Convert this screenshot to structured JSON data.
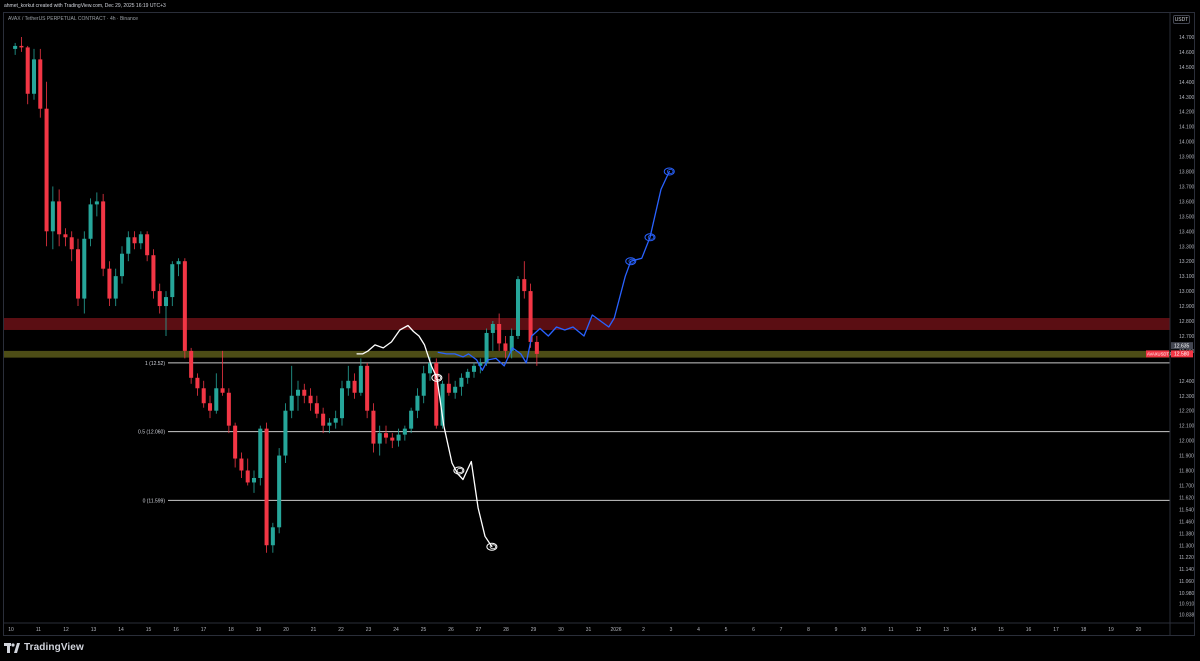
{
  "header": {
    "author_line": "ahmet_korkut created with TradingView.com, Dec 29, 2025 16:19 UTC+3",
    "symbol_line": "AVAX / TetherUS PERPETUAL CONTRACT · 4h · Binance"
  },
  "price_axis": {
    "currency": "USDT"
  },
  "footer": {
    "logo_text": "TradingView"
  },
  "colors": {
    "up": "#26a69a",
    "down": "#f23645",
    "red_zone": "#6b1016",
    "yellow_zone": "#5a5a1a",
    "bullish_path": "#2962ff",
    "bearish_path": "#ffffff",
    "fib_line": "#c9c9c9"
  },
  "chart_data": {
    "type": "candlestick",
    "title": "",
    "xlabel": "",
    "ylabel": "",
    "ylim": [
      10.8,
      14.8
    ],
    "y_ticks": [
      "14.700",
      "14.600",
      "14.500",
      "14.400",
      "14.300",
      "14.200",
      "14.100",
      "14.000",
      "13.900",
      "13.800",
      "13.700",
      "13.600",
      "13.500",
      "13.400",
      "13.300",
      "13.200",
      "13.100",
      "13.000",
      "12.900",
      "12.800",
      "12.700",
      "12.600",
      "12.400",
      "12.300",
      "12.200",
      "12.100",
      "12.000",
      "11.900",
      "11.800",
      "11.700",
      "11.620",
      "11.540",
      "11.460",
      "11.380",
      "11.300",
      "11.220",
      "11.140",
      "11.060",
      "10.980",
      "10.910",
      "10.838"
    ],
    "x_ticks": [
      "10",
      "11",
      "12",
      "13",
      "14",
      "15",
      "16",
      "17",
      "18",
      "19",
      "20",
      "21",
      "22",
      "23",
      "24",
      "25",
      "26",
      "27",
      "28",
      "29",
      "30",
      "31",
      "2026",
      "2",
      "3",
      "4",
      "5",
      "6",
      "7",
      "8",
      "9",
      "10",
      "11",
      "12",
      "13",
      "14",
      "15",
      "16",
      "17",
      "18",
      "19",
      "20"
    ],
    "price_labels": [
      {
        "label": "12.635",
        "value": 12.635,
        "color": "#434651"
      },
      {
        "label": "AVAXUSDT.P",
        "value": 12.58,
        "price": "12.580",
        "color": "#f23645"
      }
    ],
    "zones": [
      {
        "name": "resistance",
        "from": 12.74,
        "to": 12.82,
        "color": "#6b1016"
      },
      {
        "name": "support",
        "from": 12.555,
        "to": 12.6,
        "color": "#5a5a1a"
      }
    ],
    "fib_levels": [
      {
        "label": "1 (12.52)",
        "value": 12.52
      },
      {
        "label": "0.5 (12.060)",
        "value": 12.06
      },
      {
        "label": "0 (11.599)",
        "value": 11.6
      }
    ],
    "candles": [
      {
        "o": 14.62,
        "h": 14.66,
        "l": 14.58,
        "c": 14.64
      },
      {
        "o": 14.64,
        "h": 14.7,
        "l": 14.6,
        "c": 14.63
      },
      {
        "o": 14.63,
        "h": 14.64,
        "l": 14.25,
        "c": 14.32
      },
      {
        "o": 14.32,
        "h": 14.62,
        "l": 14.28,
        "c": 14.55
      },
      {
        "o": 14.55,
        "h": 14.62,
        "l": 14.16,
        "c": 14.22
      },
      {
        "o": 14.22,
        "h": 14.4,
        "l": 13.3,
        "c": 13.4
      },
      {
        "o": 13.4,
        "h": 13.7,
        "l": 13.28,
        "c": 13.6
      },
      {
        "o": 13.6,
        "h": 13.68,
        "l": 13.3,
        "c": 13.38
      },
      {
        "o": 13.38,
        "h": 13.42,
        "l": 13.3,
        "c": 13.36
      },
      {
        "o": 13.36,
        "h": 13.4,
        "l": 13.2,
        "c": 13.28
      },
      {
        "o": 13.28,
        "h": 13.35,
        "l": 12.9,
        "c": 12.95
      },
      {
        "o": 12.95,
        "h": 13.4,
        "l": 12.85,
        "c": 13.35
      },
      {
        "o": 13.35,
        "h": 13.62,
        "l": 13.3,
        "c": 13.58
      },
      {
        "o": 13.58,
        "h": 13.66,
        "l": 13.5,
        "c": 13.6
      },
      {
        "o": 13.6,
        "h": 13.65,
        "l": 13.1,
        "c": 13.15
      },
      {
        "o": 13.15,
        "h": 13.2,
        "l": 12.9,
        "c": 12.95
      },
      {
        "o": 12.95,
        "h": 13.15,
        "l": 12.9,
        "c": 13.1
      },
      {
        "o": 13.1,
        "h": 13.3,
        "l": 13.05,
        "c": 13.25
      },
      {
        "o": 13.25,
        "h": 13.4,
        "l": 13.2,
        "c": 13.36
      },
      {
        "o": 13.36,
        "h": 13.4,
        "l": 13.28,
        "c": 13.32
      },
      {
        "o": 13.32,
        "h": 13.4,
        "l": 13.28,
        "c": 13.38
      },
      {
        "o": 13.38,
        "h": 13.4,
        "l": 13.2,
        "c": 13.24
      },
      {
        "o": 13.24,
        "h": 13.28,
        "l": 12.95,
        "c": 13.0
      },
      {
        "o": 13.0,
        "h": 13.05,
        "l": 12.85,
        "c": 12.9
      },
      {
        "o": 12.9,
        "h": 13.0,
        "l": 12.7,
        "c": 12.96
      },
      {
        "o": 12.96,
        "h": 13.2,
        "l": 12.9,
        "c": 13.18
      },
      {
        "o": 13.18,
        "h": 13.22,
        "l": 13.1,
        "c": 13.2
      },
      {
        "o": 13.2,
        "h": 13.22,
        "l": 12.55,
        "c": 12.6
      },
      {
        "o": 12.6,
        "h": 12.62,
        "l": 12.38,
        "c": 12.42
      },
      {
        "o": 12.42,
        "h": 12.45,
        "l": 12.3,
        "c": 12.35
      },
      {
        "o": 12.35,
        "h": 12.4,
        "l": 12.22,
        "c": 12.25
      },
      {
        "o": 12.25,
        "h": 12.3,
        "l": 12.15,
        "c": 12.2
      },
      {
        "o": 12.2,
        "h": 12.45,
        "l": 12.18,
        "c": 12.35
      },
      {
        "o": 12.35,
        "h": 12.6,
        "l": 12.3,
        "c": 12.32
      },
      {
        "o": 12.32,
        "h": 12.35,
        "l": 12.05,
        "c": 12.1
      },
      {
        "o": 12.1,
        "h": 12.12,
        "l": 11.82,
        "c": 11.88
      },
      {
        "o": 11.88,
        "h": 11.92,
        "l": 11.75,
        "c": 11.8
      },
      {
        "o": 11.8,
        "h": 11.88,
        "l": 11.7,
        "c": 11.72
      },
      {
        "o": 11.72,
        "h": 11.8,
        "l": 11.65,
        "c": 11.75
      },
      {
        "o": 11.75,
        "h": 12.1,
        "l": 11.7,
        "c": 12.08
      },
      {
        "o": 12.08,
        "h": 12.12,
        "l": 11.25,
        "c": 11.3
      },
      {
        "o": 11.3,
        "h": 11.45,
        "l": 11.25,
        "c": 11.42
      },
      {
        "o": 11.42,
        "h": 11.95,
        "l": 11.38,
        "c": 11.9
      },
      {
        "o": 11.9,
        "h": 12.25,
        "l": 11.85,
        "c": 12.2
      },
      {
        "o": 12.2,
        "h": 12.5,
        "l": 12.15,
        "c": 12.3
      },
      {
        "o": 12.3,
        "h": 12.4,
        "l": 12.2,
        "c": 12.34
      },
      {
        "o": 12.34,
        "h": 12.38,
        "l": 12.25,
        "c": 12.3
      },
      {
        "o": 12.3,
        "h": 12.35,
        "l": 12.2,
        "c": 12.25
      },
      {
        "o": 12.25,
        "h": 12.3,
        "l": 12.15,
        "c": 12.18
      },
      {
        "o": 12.18,
        "h": 12.22,
        "l": 12.05,
        "c": 12.1
      },
      {
        "o": 12.1,
        "h": 12.15,
        "l": 12.05,
        "c": 12.12
      },
      {
        "o": 12.12,
        "h": 12.2,
        "l": 12.08,
        "c": 12.15
      },
      {
        "o": 12.15,
        "h": 12.4,
        "l": 12.1,
        "c": 12.35
      },
      {
        "o": 12.35,
        "h": 12.5,
        "l": 12.3,
        "c": 12.4
      },
      {
        "o": 12.4,
        "h": 12.45,
        "l": 12.28,
        "c": 12.32
      },
      {
        "o": 12.32,
        "h": 12.55,
        "l": 12.3,
        "c": 12.5
      },
      {
        "o": 12.5,
        "h": 12.52,
        "l": 12.15,
        "c": 12.2
      },
      {
        "o": 12.2,
        "h": 12.25,
        "l": 11.92,
        "c": 11.98
      },
      {
        "o": 11.98,
        "h": 12.1,
        "l": 11.9,
        "c": 12.05
      },
      {
        "o": 12.05,
        "h": 12.1,
        "l": 11.98,
        "c": 12.02
      },
      {
        "o": 12.02,
        "h": 12.05,
        "l": 11.95,
        "c": 12.0
      },
      {
        "o": 12.0,
        "h": 12.08,
        "l": 11.96,
        "c": 12.04
      },
      {
        "o": 12.04,
        "h": 12.1,
        "l": 12.0,
        "c": 12.08
      },
      {
        "o": 12.08,
        "h": 12.22,
        "l": 12.05,
        "c": 12.2
      },
      {
        "o": 12.2,
        "h": 12.35,
        "l": 12.15,
        "c": 12.3
      },
      {
        "o": 12.3,
        "h": 12.5,
        "l": 12.25,
        "c": 12.45
      },
      {
        "o": 12.45,
        "h": 12.56,
        "l": 12.4,
        "c": 12.52
      },
      {
        "o": 12.52,
        "h": 12.55,
        "l": 12.08,
        "c": 12.1
      },
      {
        "o": 12.1,
        "h": 12.4,
        "l": 12.08,
        "c": 12.38
      },
      {
        "o": 12.38,
        "h": 12.45,
        "l": 12.3,
        "c": 12.32
      },
      {
        "o": 12.32,
        "h": 12.4,
        "l": 12.28,
        "c": 12.36
      },
      {
        "o": 12.36,
        "h": 12.45,
        "l": 12.3,
        "c": 12.42
      },
      {
        "o": 12.42,
        "h": 12.48,
        "l": 12.38,
        "c": 12.46
      },
      {
        "o": 12.46,
        "h": 12.52,
        "l": 12.42,
        "c": 12.5
      },
      {
        "o": 12.5,
        "h": 12.55,
        "l": 12.45,
        "c": 12.52
      },
      {
        "o": 12.52,
        "h": 12.75,
        "l": 12.5,
        "c": 12.72
      },
      {
        "o": 12.72,
        "h": 12.8,
        "l": 12.6,
        "c": 12.78
      },
      {
        "o": 12.78,
        "h": 12.85,
        "l": 12.6,
        "c": 12.65
      },
      {
        "o": 12.65,
        "h": 12.7,
        "l": 12.55,
        "c": 12.6
      },
      {
        "o": 12.6,
        "h": 12.75,
        "l": 12.55,
        "c": 12.7
      },
      {
        "o": 12.7,
        "h": 13.1,
        "l": 12.68,
        "c": 13.08
      },
      {
        "o": 13.08,
        "h": 13.2,
        "l": 12.95,
        "c": 13.0
      },
      {
        "o": 13.0,
        "h": 13.05,
        "l": 12.62,
        "c": 12.66
      },
      {
        "o": 12.66,
        "h": 12.7,
        "l": 12.5,
        "c": 12.58
      }
    ],
    "bearish_path": [
      [
        12.55,
        12.58
      ],
      [
        12.75,
        12.58
      ],
      [
        12.95,
        12.6
      ],
      [
        13.2,
        12.64
      ],
      [
        13.5,
        12.62
      ],
      [
        13.8,
        12.66
      ],
      [
        14.1,
        12.74
      ],
      [
        14.4,
        12.77
      ],
      [
        14.6,
        12.73
      ],
      [
        14.8,
        12.7
      ],
      [
        15.0,
        12.64
      ],
      [
        15.25,
        12.5
      ],
      [
        15.45,
        12.42
      ],
      [
        15.7,
        12.1
      ],
      [
        16.0,
        11.85
      ],
      [
        16.2,
        11.78
      ],
      [
        16.4,
        11.74
      ],
      [
        16.55,
        11.8
      ],
      [
        16.7,
        11.86
      ],
      [
        16.95,
        11.55
      ],
      [
        17.2,
        11.36
      ],
      [
        17.45,
        11.29
      ]
    ],
    "bullish_path": [
      [
        15.5,
        12.59
      ],
      [
        15.8,
        12.58
      ],
      [
        16.1,
        12.58
      ],
      [
        16.4,
        12.56
      ],
      [
        16.6,
        12.58
      ],
      [
        16.9,
        12.54
      ],
      [
        17.1,
        12.47
      ],
      [
        17.3,
        12.54
      ],
      [
        17.6,
        12.55
      ],
      [
        17.9,
        12.5
      ],
      [
        18.2,
        12.62
      ],
      [
        18.5,
        12.58
      ],
      [
        18.7,
        12.52
      ],
      [
        18.9,
        12.7
      ],
      [
        19.2,
        12.75
      ],
      [
        19.5,
        12.7
      ],
      [
        19.8,
        12.76
      ],
      [
        20.1,
        12.74
      ],
      [
        20.4,
        12.76
      ],
      [
        20.8,
        12.7
      ],
      [
        21.1,
        12.84
      ],
      [
        21.4,
        12.8
      ],
      [
        21.7,
        12.76
      ],
      [
        21.9,
        12.82
      ],
      [
        22.3,
        13.1
      ],
      [
        22.5,
        13.2
      ],
      [
        22.9,
        13.22
      ],
      [
        23.2,
        13.36
      ],
      [
        23.6,
        13.68
      ],
      [
        23.9,
        13.8
      ]
    ]
  }
}
